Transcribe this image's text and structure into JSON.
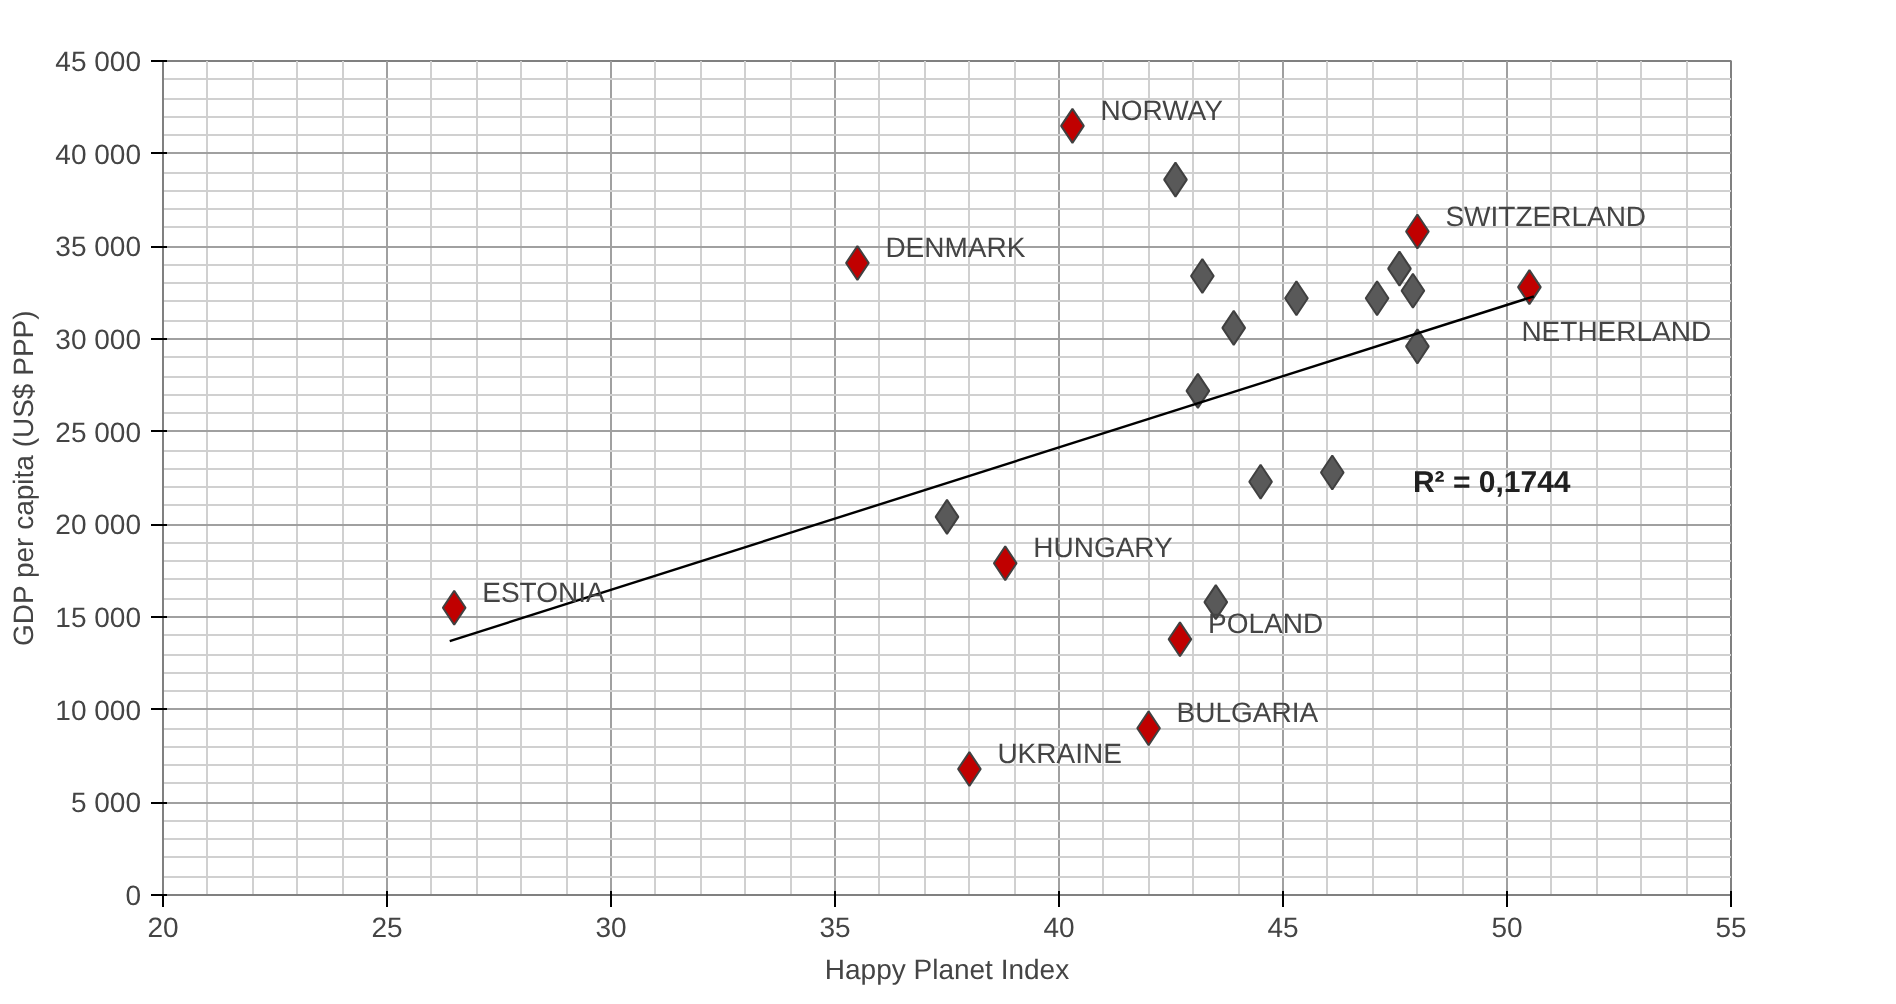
{
  "chart_data": {
    "type": "scatter",
    "xlabel": "Happy Planet Index",
    "ylabel": "GDP per capita (US$ PPP)",
    "xlim": [
      20,
      55
    ],
    "xticks": [
      20,
      25,
      30,
      35,
      40,
      45,
      50,
      55
    ],
    "ylim": [
      0,
      45000
    ],
    "yticks": [
      0,
      {
        "value": 5000,
        "label": "5 000"
      },
      {
        "value": 10000,
        "label": "10 000"
      },
      {
        "value": 15000,
        "label": "15 000"
      },
      {
        "value": 20000,
        "label": "20 000"
      },
      {
        "value": 25000,
        "label": "25 000"
      },
      {
        "value": 30000,
        "label": "30 000"
      },
      {
        "value": 35000,
        "label": "35 000"
      },
      {
        "value": 40000,
        "label": "40 000"
      },
      {
        "value": 45000,
        "label": "45 000"
      }
    ],
    "grid": true,
    "marker": "diamond",
    "series": [
      {
        "color": "#595959",
        "x": [
          42.6,
          43.2,
          43.9,
          45.3,
          47.1,
          47.6,
          47.9,
          48.0,
          43.1,
          37.5,
          44.5,
          46.1,
          43.5
        ],
        "values": [
          38600,
          33400,
          30600,
          32200,
          32200,
          33800,
          32600,
          29600,
          27200,
          20400,
          22300,
          22800,
          15800
        ]
      },
      {
        "color": "#c00000",
        "x": [
          26.5,
          35.5,
          40.3,
          48.0,
          50.5,
          38.8,
          42.7,
          42.0,
          38.0
        ],
        "values": [
          15500,
          34100,
          41500,
          35800,
          32800,
          17900,
          13800,
          9000,
          6800
        ]
      },
      {
        "type": "line",
        "color": "#000000",
        "marker": "none",
        "x": [
          26.4,
          50.6
        ],
        "values": [
          13700,
          32300
        ]
      }
    ],
    "annotations": [
      {
        "text": "ESTONIA",
        "x": 26.5,
        "y": 15500
      },
      {
        "text": "DENMARK",
        "x": 35.5,
        "y": 34100
      },
      {
        "text": "NORWAY",
        "x": 40.3,
        "y": 41500
      },
      {
        "text": "SWITZERLAND",
        "x": 48.0,
        "y": 35800
      },
      {
        "text": "NETHERLAND",
        "x": 50.5,
        "y": 32800
      },
      {
        "text": "HUNGARY",
        "x": 38.8,
        "y": 17900
      },
      {
        "text": "POLAND",
        "x": 42.7,
        "y": 13800
      },
      {
        "text": "BULGARIA",
        "x": 42.0,
        "y": 9000
      },
      {
        "text": "UKRAINE",
        "x": 38.0,
        "y": 6800
      },
      "R² = 0,1744"
    ]
  }
}
